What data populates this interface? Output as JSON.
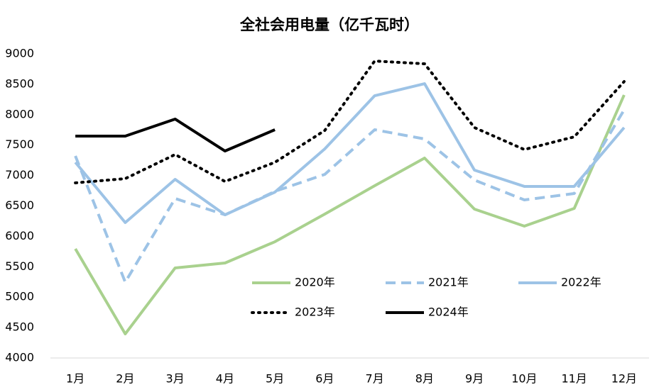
{
  "chart_data": {
    "type": "line",
    "title": "全社会用电量（亿千瓦时）",
    "categories": [
      "1月",
      "2月",
      "3月",
      "4月",
      "5月",
      "6月",
      "7月",
      "8月",
      "9月",
      "10月",
      "11月",
      "12月"
    ],
    "series": [
      {
        "name": "2020年",
        "color": "#a9d18e",
        "dash": "solid",
        "values": [
          5795,
          4396,
          5480,
          5562,
          5911,
          6366,
          6832,
          7287,
          6448,
          6168,
          6459,
          8324
        ]
      },
      {
        "name": "2021年",
        "color": "#9dc3e6",
        "dash": "dashed",
        "values": [
          7322,
          5247,
          6622,
          6354,
          6739,
          7019,
          7753,
          7601,
          6925,
          6599,
          6704,
          8079
        ]
      },
      {
        "name": "2022年",
        "color": "#9dc3e6",
        "dash": "solid",
        "values": [
          7217,
          6226,
          6937,
          6354,
          6727,
          7438,
          8312,
          8510,
          7089,
          6821,
          6821,
          7788
        ]
      },
      {
        "name": "2023年",
        "color": "#000000",
        "dash": "dotted",
        "values": [
          6879,
          6949,
          7345,
          6902,
          7217,
          7741,
          8883,
          8837,
          7788,
          7427,
          7636,
          8545
        ]
      },
      {
        "name": "2024年",
        "color": "#000000",
        "dash": "solid",
        "values": [
          7648,
          7648,
          7928,
          7403,
          7753,
          null,
          null,
          null,
          null,
          null,
          null,
          null
        ]
      }
    ],
    "ylim": [
      4000,
      9000
    ],
    "yticks": [
      4000,
      4500,
      5000,
      5500,
      6000,
      6500,
      7000,
      7500,
      8000,
      8500,
      9000
    ],
    "grid": false
  }
}
